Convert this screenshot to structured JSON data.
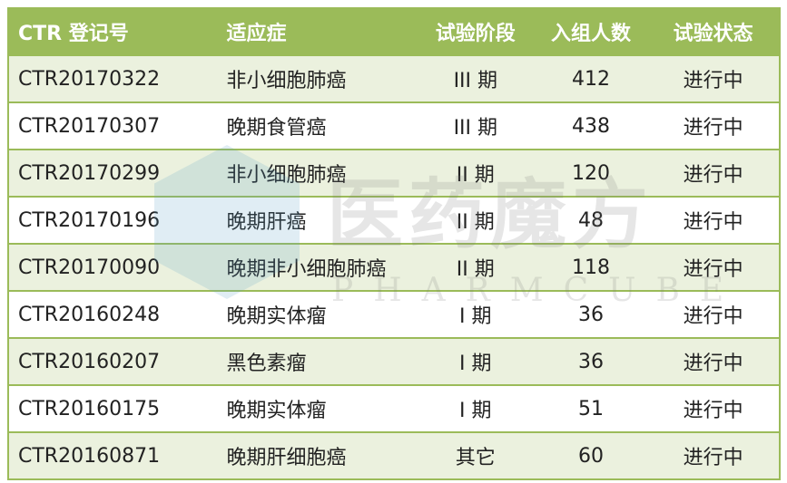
{
  "colors": {
    "header": "#9bbb59",
    "row_alt": "#ebf1de",
    "border": "#9bbb59"
  },
  "watermark": {
    "cn": "医药魔方",
    "en": "PHARMCUBE"
  },
  "headers": [
    "CTR 登记号",
    "适应症",
    "试验阶段",
    "入组人数",
    "试验状态"
  ],
  "rows": [
    [
      "CTR20170322",
      "非小细胞肺癌",
      "III 期",
      "412",
      "进行中"
    ],
    [
      "CTR20170307",
      "晚期食管癌",
      "III 期",
      "438",
      "进行中"
    ],
    [
      "CTR20170299",
      "非小细胞肺癌",
      "II 期",
      "120",
      "进行中"
    ],
    [
      "CTR20170196",
      "晚期肝癌",
      "II 期",
      "48",
      "进行中"
    ],
    [
      "CTR20170090",
      "晚期非小细胞肺癌",
      "II 期",
      "118",
      "进行中"
    ],
    [
      "CTR20160248",
      "晚期实体瘤",
      "I 期",
      "36",
      "进行中"
    ],
    [
      "CTR20160207",
      "黑色素瘤",
      "I 期",
      "36",
      "进行中"
    ],
    [
      "CTR20160175",
      "晚期实体瘤",
      "I 期",
      "51",
      "进行中"
    ],
    [
      "CTR20160871",
      "晚期肝细胞癌",
      "其它",
      "60",
      "进行中"
    ]
  ]
}
